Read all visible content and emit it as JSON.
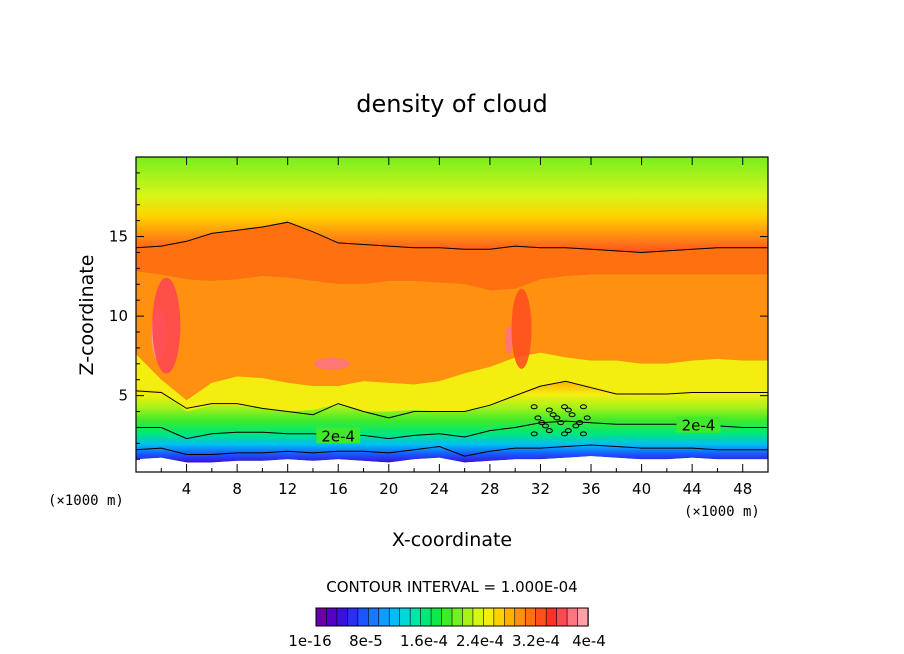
{
  "chart_data": {
    "type": "heatmap",
    "title": "density of cloud",
    "xlabel": "X-coordinate",
    "ylabel": "Z-coordinate",
    "x_unit": "(×1000 m)",
    "xlim": [
      0,
      50
    ],
    "ylim": [
      0.2,
      20
    ],
    "x_ticks": [
      4,
      8,
      12,
      16,
      20,
      24,
      28,
      32,
      36,
      40,
      44,
      48
    ],
    "y_ticks": [
      5,
      10,
      15
    ],
    "contour_interval_text": "CONTOUR INTERVAL = 1.000E-04",
    "contour_labels": [
      "2e-4",
      "2e-4"
    ],
    "colorbar": {
      "min": 1e-16,
      "max": 0.0004,
      "tick_labels": [
        "1e-16",
        "8e-5",
        "1.6e-4",
        "2.4e-4",
        "3.2e-4",
        "4e-4"
      ],
      "colors": [
        "#6a00aa",
        "#5500c8",
        "#3a10dc",
        "#2a30ee",
        "#1a55ff",
        "#1878ff",
        "#109cff",
        "#00bef2",
        "#00d8d8",
        "#00e6a8",
        "#00e878",
        "#10e84a",
        "#40ea2a",
        "#78ee20",
        "#a8f21a",
        "#d6f618",
        "#f4ee10",
        "#ffd200",
        "#ffb000",
        "#ff9010",
        "#ff7010",
        "#ff5020",
        "#ff3028",
        "#ff4850",
        "#ff7480",
        "#ffa0a8"
      ]
    },
    "profile_x": [
      0,
      2,
      4,
      6,
      8,
      10,
      12,
      14,
      16,
      18,
      20,
      22,
      24,
      26,
      28,
      30,
      32,
      34,
      36,
      38,
      40,
      42,
      44,
      46,
      48,
      50
    ],
    "ground_z": [
      1.0,
      1.1,
      0.8,
      0.8,
      0.9,
      0.9,
      1.0,
      0.9,
      1.0,
      0.9,
      0.8,
      1.0,
      1.1,
      0.8,
      0.9,
      1.0,
      1.0,
      1.1,
      1.2,
      1.1,
      1.0,
      1.0,
      1.1,
      1.0,
      1.0,
      1.0
    ],
    "bands": [
      {
        "level": 0.00026,
        "z": [
          5.4,
          5.3,
          4.0,
          4.4,
          4.4,
          4.2,
          4.0,
          4.1,
          4.5,
          4.0,
          4.0,
          4.1,
          4.0,
          4.0,
          4.4,
          5.0,
          5.6,
          5.9,
          5.6,
          5.2,
          5.0,
          5.0,
          5.1,
          5.1,
          5.1,
          5.1
        ]
      },
      {
        "level": 0.0003,
        "z": [
          7.6,
          6.0,
          4.7,
          5.8,
          6.2,
          6.1,
          5.8,
          5.6,
          5.6,
          5.9,
          5.8,
          5.7,
          5.9,
          6.4,
          6.8,
          7.4,
          7.7,
          7.4,
          7.2,
          7.2,
          7.0,
          7.0,
          7.2,
          7.3,
          7.2,
          7.2
        ]
      },
      {
        "level": 0.00034,
        "z": [
          12.8,
          12.6,
          12.3,
          12.2,
          12.3,
          12.5,
          12.4,
          12.2,
          12.0,
          12.0,
          12.2,
          12.2,
          12.1,
          12.0,
          11.6,
          11.7,
          12.3,
          12.5,
          12.6,
          12.6,
          12.6,
          12.6,
          12.6,
          12.6,
          12.6,
          12.6
        ]
      }
    ],
    "contours": [
      {
        "level": 0.0001,
        "z": [
          1.6,
          1.7,
          1.3,
          1.3,
          1.4,
          1.4,
          1.5,
          1.4,
          1.5,
          1.5,
          1.4,
          1.6,
          1.8,
          1.2,
          1.5,
          1.7,
          1.7,
          1.8,
          1.9,
          1.8,
          1.7,
          1.7,
          1.7,
          1.6,
          1.6,
          1.6
        ]
      },
      {
        "level": 0.0002,
        "z": [
          3.0,
          3.0,
          2.3,
          2.6,
          2.7,
          2.7,
          2.6,
          2.6,
          2.5,
          2.5,
          2.3,
          2.5,
          2.6,
          2.4,
          2.8,
          3.0,
          3.3,
          3.4,
          3.3,
          3.2,
          3.2,
          3.2,
          3.2,
          3.1,
          3.0,
          3.0
        ]
      },
      {
        "level": 0.0003,
        "z": [
          5.3,
          5.2,
          4.2,
          4.5,
          4.5,
          4.2,
          4.0,
          3.8,
          4.5,
          4.0,
          3.6,
          4.0,
          4.0,
          4.0,
          4.4,
          5.0,
          5.6,
          5.9,
          5.5,
          5.1,
          5.1,
          5.1,
          5.2,
          5.2,
          5.2,
          5.2
        ]
      },
      {
        "level": 0.0002,
        "z": [
          14.3,
          14.4,
          14.7,
          15.2,
          15.4,
          15.6,
          15.9,
          15.3,
          14.6,
          14.5,
          14.4,
          14.3,
          14.3,
          14.2,
          14.2,
          14.4,
          14.3,
          14.3,
          14.2,
          14.1,
          14.0,
          14.1,
          14.2,
          14.3,
          14.3,
          14.3
        ]
      }
    ]
  }
}
